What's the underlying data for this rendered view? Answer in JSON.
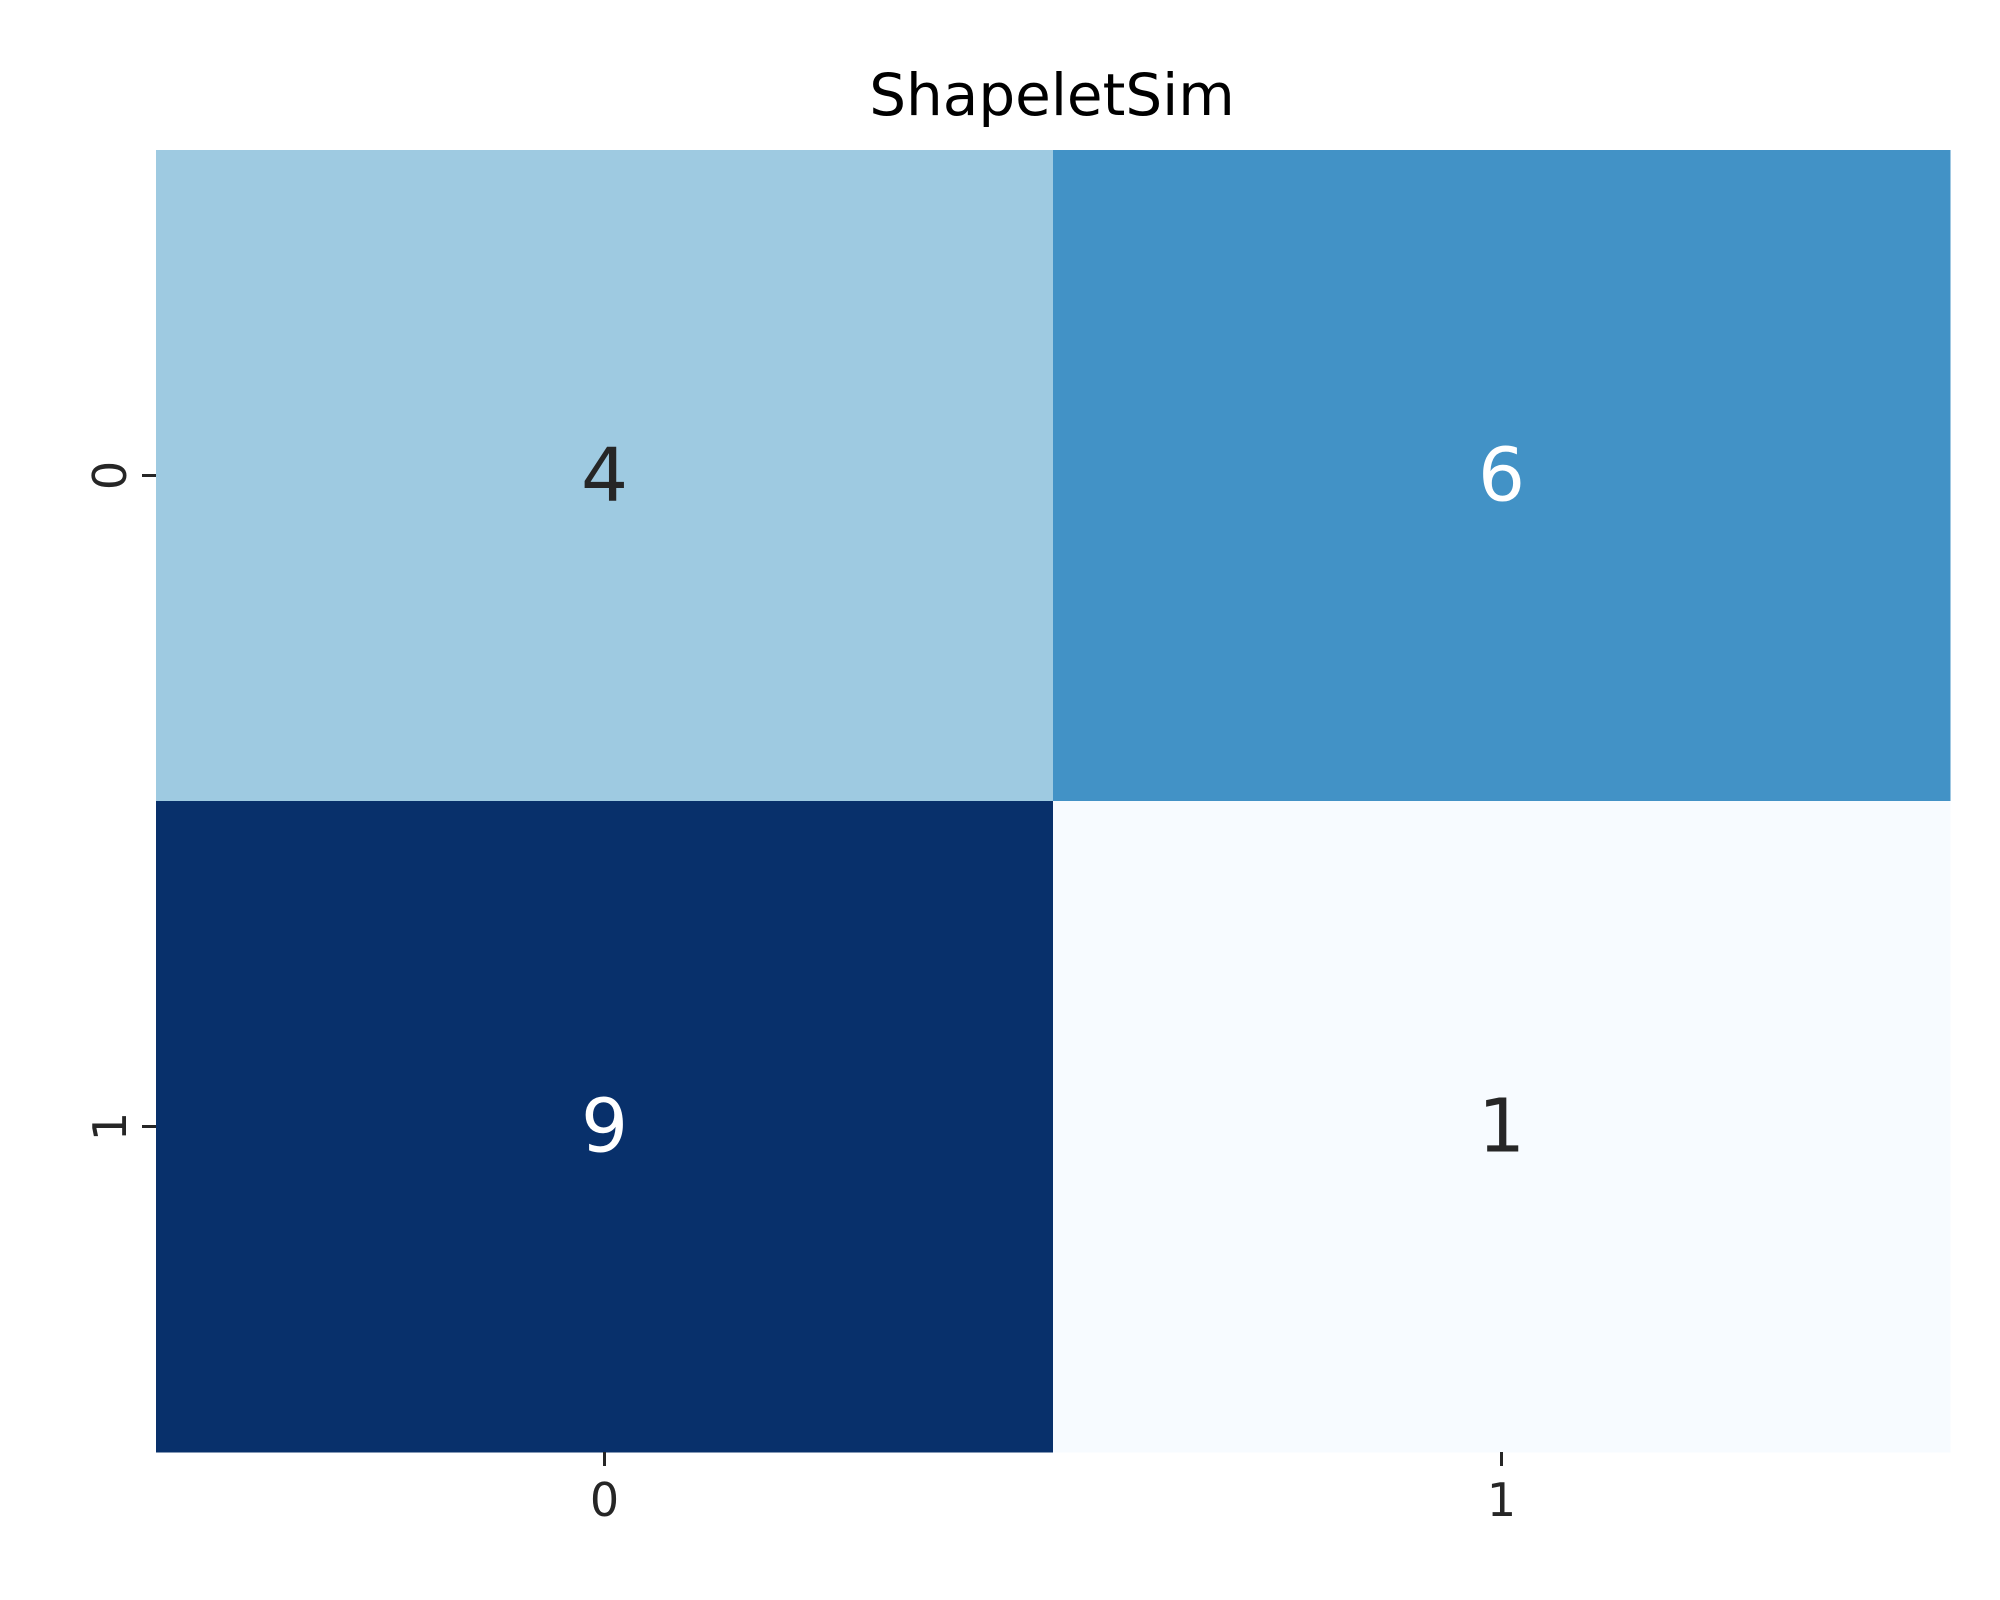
{
  "chart_data": {
    "type": "heatmap",
    "title": "ShapeletSim",
    "xlabel": "",
    "ylabel": "",
    "x_tick_labels": [
      "0",
      "1"
    ],
    "y_tick_labels": [
      "0",
      "1"
    ],
    "matrix": [
      [
        4,
        6
      ],
      [
        9,
        1
      ]
    ],
    "colormap": "Blues",
    "colorbar": false,
    "cell_colors": [
      [
        "#9ecae1",
        "#4292c6"
      ],
      [
        "#08306b",
        "#f7fbff"
      ]
    ],
    "annotation_colors": [
      [
        "#262626",
        "#ffffff"
      ],
      [
        "#ffffff",
        "#262626"
      ]
    ]
  }
}
